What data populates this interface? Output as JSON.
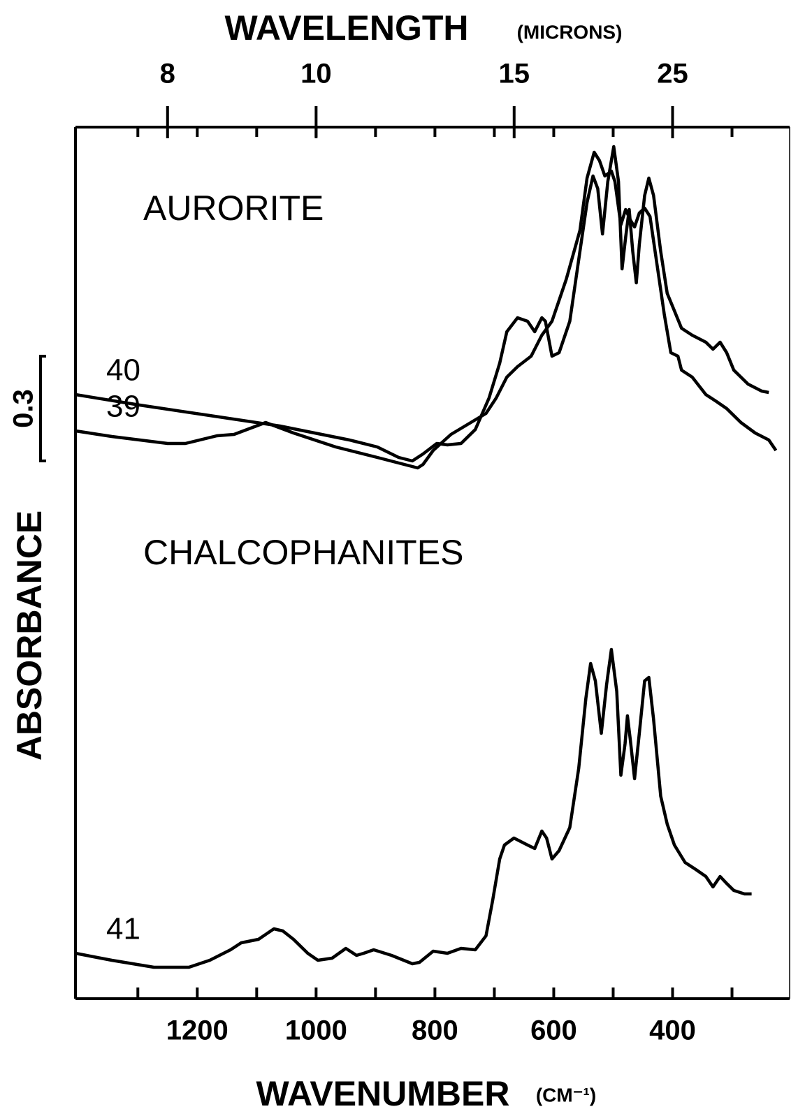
{
  "chart_data": {
    "type": "line",
    "x_label": "WAVENUMBER",
    "x_unit": "(CM⁻¹)",
    "x2_label": "WAVELENGTH",
    "x2_unit": "(MICRONS)",
    "y_label": "ABSORBANCE",
    "xlim": [
      1405,
      203
    ],
    "xticks": [
      1200,
      1000,
      800,
      600,
      400
    ],
    "xminor": [
      1300,
      1100,
      900,
      700,
      500,
      300
    ],
    "x2ticks": [
      8,
      10,
      15,
      25
    ],
    "ylim": [
      0,
      2.5
    ],
    "scale_bar": {
      "value": 0.3,
      "start": 1.54
    },
    "annotations": [
      "AURORITE",
      "CHALCOPHANITES"
    ],
    "color": "#000000",
    "series": [
      {
        "name": "39",
        "color": "#000000",
        "x": [
          1405,
          1344,
          1250,
          1220,
          1167,
          1138,
          1085,
          1038,
          967,
          897,
          829,
          820,
          803,
          773,
          714,
          697,
          679,
          661,
          638,
          620,
          603,
          579,
          556,
          544,
          532,
          523,
          514,
          503,
          497,
          487,
          479,
          471,
          464,
          456,
          447,
          438,
          426,
          414,
          403,
          391,
          385,
          367,
          344,
          326,
          309,
          285,
          261,
          238,
          226
        ],
        "values": [
          1.626,
          1.61,
          1.59,
          1.59,
          1.612,
          1.616,
          1.65,
          1.62,
          1.58,
          1.55,
          1.52,
          1.53,
          1.57,
          1.616,
          1.676,
          1.72,
          1.78,
          1.81,
          1.84,
          1.9,
          1.94,
          2.06,
          2.2,
          2.35,
          2.424,
          2.4,
          2.356,
          2.37,
          2.34,
          2.216,
          2.26,
          2.23,
          2.21,
          2.25,
          2.264,
          2.24,
          2.1,
          1.96,
          1.85,
          1.84,
          1.8,
          1.78,
          1.73,
          1.71,
          1.69,
          1.65,
          1.62,
          1.6,
          1.57
        ]
      },
      {
        "name": "40",
        "color": "#000000",
        "x": [
          1405,
          1297,
          1179,
          1061,
          944,
          897,
          861,
          838,
          820,
          797,
          779,
          756,
          732,
          709,
          691,
          679,
          661,
          644,
          632,
          620,
          614,
          603,
          591,
          573,
          556,
          544,
          534,
          526,
          518,
          509,
          499,
          491,
          485,
          479,
          473,
          467,
          461,
          456,
          447,
          440,
          432,
          420,
          409,
          397,
          385,
          367,
          344,
          332,
          320,
          309,
          297,
          273,
          250,
          238
        ],
        "values": [
          1.73,
          1.7,
          1.67,
          1.64,
          1.6,
          1.58,
          1.55,
          1.54,
          1.56,
          1.59,
          1.586,
          1.59,
          1.63,
          1.72,
          1.82,
          1.91,
          1.95,
          1.94,
          1.91,
          1.95,
          1.94,
          1.84,
          1.85,
          1.94,
          2.14,
          2.28,
          2.356,
          2.32,
          2.19,
          2.34,
          2.44,
          2.34,
          2.09,
          2.18,
          2.26,
          2.14,
          2.05,
          2.16,
          2.3,
          2.35,
          2.3,
          2.14,
          2.02,
          1.97,
          1.92,
          1.9,
          1.88,
          1.86,
          1.88,
          1.85,
          1.8,
          1.76,
          1.74,
          1.736
        ]
      },
      {
        "name": "41",
        "color": "#000000",
        "x": [
          1405,
          1344,
          1273,
          1214,
          1179,
          1144,
          1126,
          1097,
          1071,
          1056,
          1038,
          1014,
          997,
          973,
          950,
          932,
          920,
          903,
          873,
          838,
          826,
          803,
          779,
          756,
          732,
          714,
          703,
          691,
          683,
          667,
          644,
          632,
          620,
          612,
          603,
          591,
          573,
          558,
          546,
          538,
          530,
          520,
          511,
          503,
          494,
          487,
          480,
          476,
          471,
          464,
          456,
          447,
          440,
          432,
          420,
          409,
          397,
          379,
          361,
          344,
          332,
          320,
          309,
          297,
          279,
          267
        ],
        "values": [
          0.13,
          0.11,
          0.09,
          0.09,
          0.11,
          0.14,
          0.16,
          0.17,
          0.2,
          0.194,
          0.17,
          0.13,
          0.11,
          0.116,
          0.144,
          0.124,
          0.13,
          0.14,
          0.124,
          0.1,
          0.104,
          0.136,
          0.13,
          0.144,
          0.14,
          0.18,
          0.28,
          0.4,
          0.44,
          0.46,
          0.44,
          0.43,
          0.48,
          0.46,
          0.4,
          0.424,
          0.49,
          0.66,
          0.86,
          0.96,
          0.91,
          0.76,
          0.9,
          1.0,
          0.88,
          0.64,
          0.73,
          0.81,
          0.74,
          0.63,
          0.76,
          0.91,
          0.92,
          0.8,
          0.58,
          0.5,
          0.44,
          0.39,
          0.37,
          0.35,
          0.32,
          0.35,
          0.33,
          0.31,
          0.3,
          0.3
        ]
      }
    ]
  }
}
